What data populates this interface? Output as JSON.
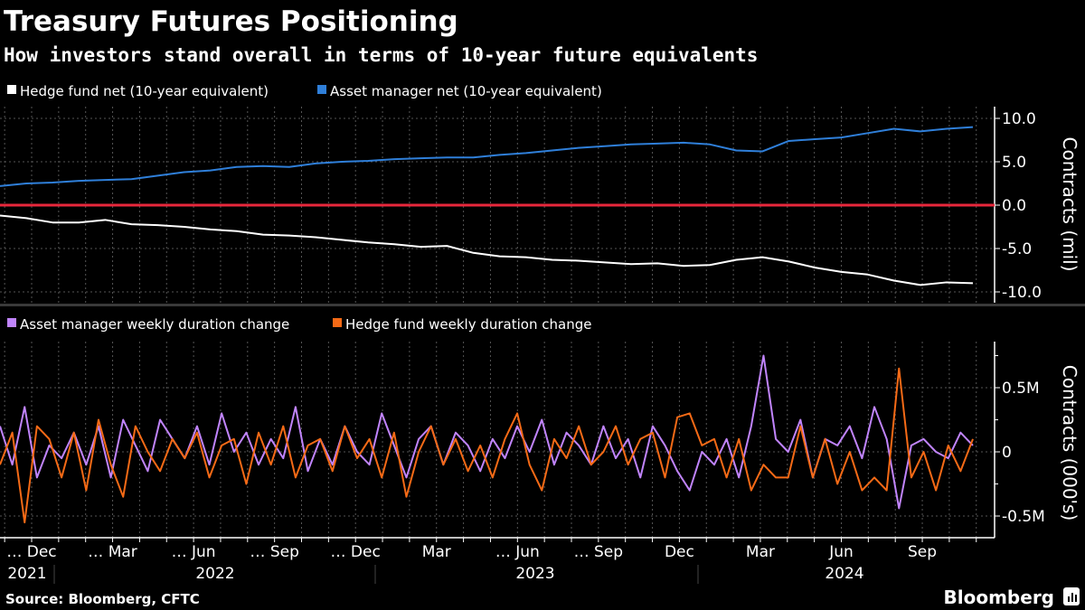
{
  "header": {
    "title": "Treasury Futures Positioning",
    "subtitle": "How investors stand overall in terms of 10-year future equivalents"
  },
  "footer": {
    "source": "Source: Bloomberg, CFTC",
    "brand": "Bloomberg"
  },
  "colors": {
    "background": "#000000",
    "hedge_fund_net": "#ffffff",
    "asset_manager_net": "#2f7fd9",
    "zero_line": "#e8283c",
    "asset_manager_change": "#c084fc",
    "hedge_fund_change": "#f56a16"
  },
  "x_axis": {
    "month_labels": [
      "… Dec",
      "… Mar",
      "… Jun",
      "… Sep",
      "… Dec",
      "Mar",
      "… Jun",
      "… Sep",
      "Dec",
      "Mar",
      "Jun",
      "Sep"
    ],
    "year_labels": [
      "2021",
      "2022",
      "2023",
      "2024"
    ]
  },
  "chart_data": [
    {
      "type": "line",
      "title": "",
      "ylabel": "Contracts (mil)",
      "ylim": [
        -11.5,
        11.3
      ],
      "yticks": [
        "10.0",
        "5.0",
        "0.0",
        "-5.0",
        "-10.0"
      ],
      "ytick_values": [
        10,
        5,
        0,
        -5,
        -10
      ],
      "grid": true,
      "legend": "top-left",
      "x_range": [
        "2021-10",
        "2024-11"
      ],
      "series": [
        {
          "name": "Hedge fund net (10-year equivalent)",
          "color": "#ffffff",
          "values": [
            -1.2,
            -1.5,
            -2.0,
            -2.0,
            -1.7,
            -2.2,
            -2.3,
            -2.5,
            -2.8,
            -3.0,
            -3.4,
            -3.5,
            -3.7,
            -4.0,
            -4.3,
            -4.5,
            -4.8,
            -4.7,
            -5.5,
            -5.9,
            -6.0,
            -6.3,
            -6.4,
            -6.6,
            -6.8,
            -6.7,
            -7.0,
            -6.9,
            -6.3,
            -6.0,
            -6.5,
            -7.2,
            -7.7,
            -8.0,
            -8.7,
            -9.2,
            -8.9,
            -9.0
          ]
        },
        {
          "name": "Asset manager net (10-year equivalent)",
          "color": "#2f7fd9",
          "values": [
            2.2,
            2.5,
            2.6,
            2.8,
            2.9,
            3.0,
            3.4,
            3.8,
            4.0,
            4.4,
            4.5,
            4.4,
            4.8,
            5.0,
            5.1,
            5.3,
            5.4,
            5.5,
            5.5,
            5.8,
            6.0,
            6.3,
            6.6,
            6.8,
            7.0,
            7.1,
            7.2,
            7.0,
            6.3,
            6.2,
            7.4,
            7.6,
            7.8,
            8.3,
            8.8,
            8.5,
            8.8,
            9.0
          ]
        }
      ]
    },
    {
      "type": "line",
      "title": "",
      "ylabel": "Contracts (000's)",
      "ylim": [
        -0.6,
        0.85
      ],
      "yticks": [
        "0.5M",
        "0",
        "-0.5M"
      ],
      "ytick_values": [
        0.5,
        0,
        -0.5
      ],
      "grid": true,
      "legend": "top-left",
      "x_range": [
        "2021-10",
        "2024-11"
      ],
      "series": [
        {
          "name": "Asset manager weekly duration change",
          "color": "#c084fc",
          "values": [
            0.2,
            -0.1,
            0.35,
            -0.2,
            0.05,
            -0.05,
            0.15,
            -0.1,
            0.2,
            -0.2,
            0.25,
            0.05,
            -0.15,
            0.25,
            0.1,
            -0.05,
            0.2,
            -0.1,
            0.3,
            0.0,
            0.15,
            -0.1,
            0.1,
            -0.05,
            0.35,
            -0.15,
            0.1,
            -0.1,
            0.2,
            0.0,
            -0.1,
            0.3,
            0.05,
            -0.2,
            0.1,
            0.2,
            -0.1,
            0.15,
            0.05,
            -0.15,
            0.1,
            -0.05,
            0.2,
            0.0,
            0.25,
            -0.1,
            0.15,
            0.05,
            -0.1,
            0.2,
            -0.05,
            0.1,
            -0.2,
            0.2,
            0.05,
            -0.15,
            -0.3,
            0.0,
            -0.1,
            0.1,
            -0.2,
            0.2,
            0.75,
            0.1,
            0.0,
            0.25,
            -0.2,
            0.1,
            0.05,
            0.2,
            -0.05,
            0.35,
            0.1,
            -0.44,
            0.05,
            0.1,
            0.0,
            -0.05,
            0.15,
            0.05
          ]
        },
        {
          "name": "Hedge fund weekly duration change",
          "color": "#f56a16",
          "values": [
            -0.1,
            0.15,
            -0.55,
            0.2,
            0.1,
            -0.2,
            0.15,
            -0.3,
            0.25,
            -0.1,
            -0.35,
            0.2,
            0.0,
            -0.15,
            0.1,
            -0.05,
            0.15,
            -0.2,
            0.05,
            0.1,
            -0.25,
            0.15,
            -0.1,
            0.2,
            -0.2,
            0.05,
            0.1,
            -0.15,
            0.2,
            -0.05,
            0.1,
            -0.2,
            0.15,
            -0.35,
            0.0,
            0.2,
            -0.1,
            0.1,
            -0.15,
            0.05,
            -0.2,
            0.1,
            0.3,
            -0.1,
            -0.3,
            0.1,
            -0.05,
            0.2,
            -0.1,
            0.0,
            0.2,
            -0.1,
            0.1,
            0.15,
            -0.2,
            0.27,
            0.3,
            0.05,
            0.1,
            -0.2,
            0.1,
            -0.3,
            -0.1,
            -0.2,
            -0.2,
            0.2,
            -0.2,
            0.1,
            -0.25,
            0.0,
            -0.3,
            -0.2,
            -0.3,
            0.65,
            -0.2,
            0.0,
            -0.3,
            0.05,
            -0.15,
            0.1
          ]
        }
      ]
    }
  ]
}
